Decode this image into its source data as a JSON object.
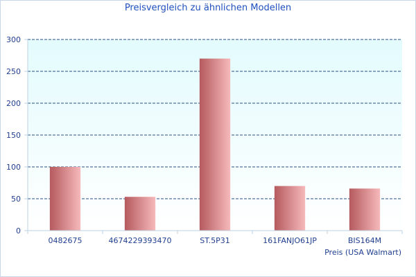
{
  "chart_data": {
    "type": "bar",
    "title": "Preisvergleich zu ähnlichen Modellen",
    "xlabel": "Preis (USA Walmart)",
    "ylabel": "",
    "categories": [
      "0482675",
      "4674229393470",
      "ST.5P31",
      "161FANJO61JP",
      "BIS164M"
    ],
    "values": [
      100,
      53,
      270,
      70,
      66
    ],
    "ylim": [
      0,
      300
    ],
    "yticks": [
      0,
      50,
      100,
      150,
      200,
      250,
      300
    ],
    "grid": true,
    "legend": "none",
    "colors": {
      "bar_dark": "#b55a5e",
      "bar_light": "#f6b9bb",
      "plot_bg_top": "#e3fbfd",
      "plot_bg_bottom": "#ffffff",
      "grid": "#2a4f80",
      "axis": "#bcd0e0",
      "text": "#1f3f8f",
      "title": "#1f4fbf"
    }
  }
}
